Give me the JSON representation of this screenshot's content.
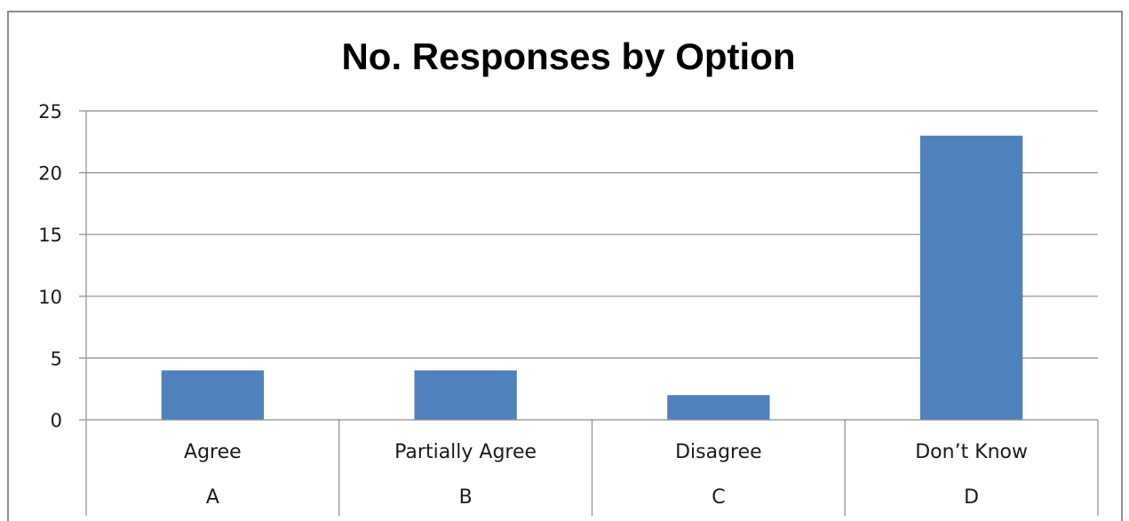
{
  "chart_data": {
    "type": "bar",
    "title": "No. Responses by Option",
    "categories": [
      "Agree",
      "Partially Agree",
      "Disagree",
      "Don’t Know"
    ],
    "category_codes": [
      "A",
      "B",
      "C",
      "D"
    ],
    "values": [
      4,
      4,
      2,
      23
    ],
    "ylim": [
      0,
      25
    ],
    "yticks": [
      "0",
      "5",
      "10",
      "15",
      "20",
      "25"
    ],
    "xlabel": "",
    "ylabel": "",
    "grid": true,
    "legend": "none",
    "bar_color": "#4f81bd"
  }
}
